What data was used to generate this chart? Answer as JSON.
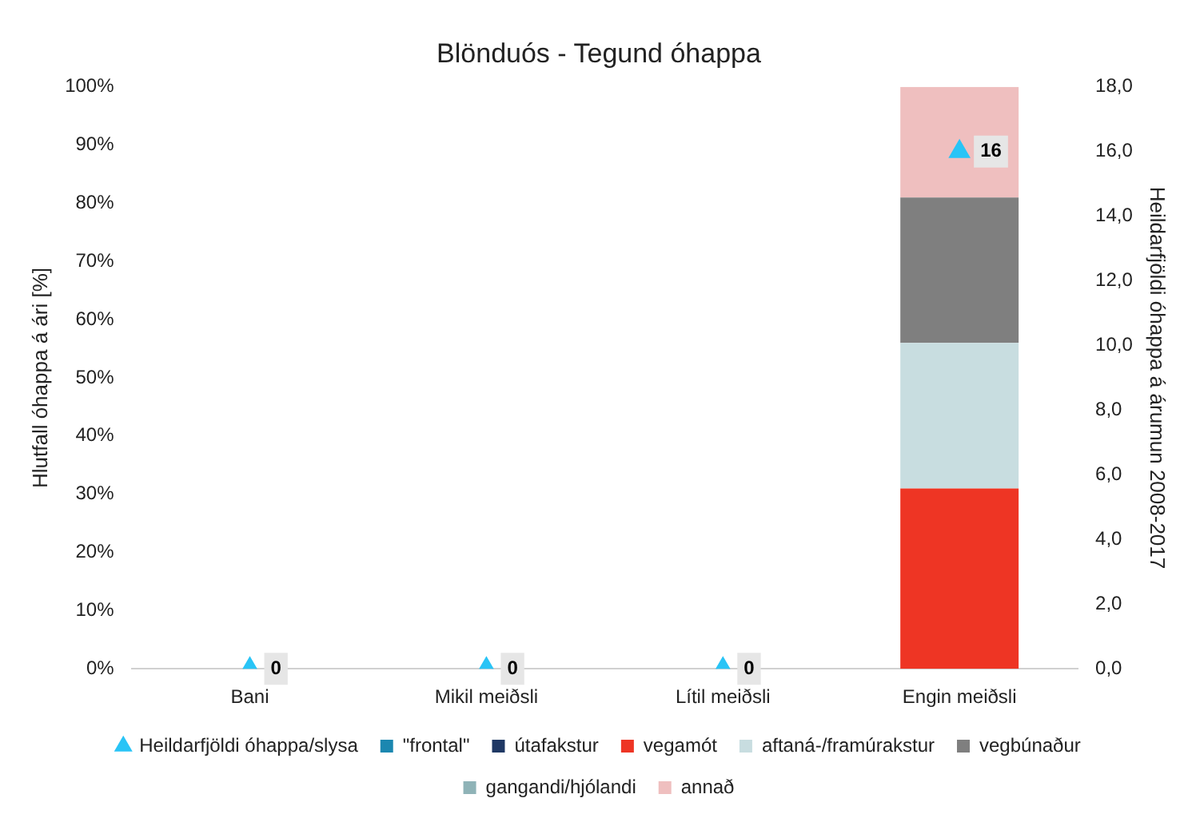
{
  "chart_data": {
    "type": "bar",
    "title": "Blönduós - Tegund óhappa",
    "ylabel": "Hlutfall óhappa á ári [%]",
    "y2label": "Heildarfjöldi óhappa á árumun 2008-2017",
    "categories": [
      "Bani",
      "Mikil meiðsli",
      "Lítil meiðsli",
      "Engin meiðsli"
    ],
    "stacked": true,
    "legend": "bottom",
    "ylim": [
      0,
      100
    ],
    "yticks": [
      {
        "value": 0,
        "label": "0%"
      },
      {
        "value": 10,
        "label": "10%"
      },
      {
        "value": 20,
        "label": "20%"
      },
      {
        "value": 30,
        "label": "30%"
      },
      {
        "value": 40,
        "label": "40%"
      },
      {
        "value": 50,
        "label": "50%"
      },
      {
        "value": 60,
        "label": "60%"
      },
      {
        "value": 70,
        "label": "70%"
      },
      {
        "value": 80,
        "label": "80%"
      },
      {
        "value": 90,
        "label": "90%"
      },
      {
        "value": 100,
        "label": "100%"
      }
    ],
    "y2lim": [
      0,
      18
    ],
    "y2ticks": [
      {
        "value": 0,
        "label": "0,0"
      },
      {
        "value": 2,
        "label": "2,0"
      },
      {
        "value": 4,
        "label": "4,0"
      },
      {
        "value": 6,
        "label": "6,0"
      },
      {
        "value": 8,
        "label": "8,0"
      },
      {
        "value": 10,
        "label": "10,0"
      },
      {
        "value": 12,
        "label": "12,0"
      },
      {
        "value": 14,
        "label": "14,0"
      },
      {
        "value": 16,
        "label": "16,0"
      },
      {
        "value": 18,
        "label": "18,0"
      }
    ],
    "series": [
      {
        "name": "\"frontal\"",
        "color": "#1b87b0",
        "values": [
          0,
          0,
          0,
          0
        ]
      },
      {
        "name": "útafakstur",
        "color": "#1f3864",
        "values": [
          0,
          0,
          0,
          0
        ]
      },
      {
        "name": "vegamót",
        "color": "#ee3524",
        "values": [
          0,
          0,
          0,
          31
        ]
      },
      {
        "name": "aftaná-/framúrakstur",
        "color": "#c8dde0",
        "values": [
          0,
          0,
          0,
          25
        ]
      },
      {
        "name": "vegbúnaður",
        "color": "#7f7f7f",
        "values": [
          0,
          0,
          0,
          25
        ]
      },
      {
        "name": "gangandi/hjólandi",
        "color": "#8fb3b7",
        "values": [
          0,
          0,
          0,
          0
        ]
      },
      {
        "name": "annað",
        "color": "#efbfbf",
        "values": [
          0,
          0,
          0,
          19
        ]
      },
      {
        "name": "Heildarfjöldi óhappa/slysa",
        "type": "scatter",
        "axis": "y2",
        "marker": "triangle",
        "color": "#29c4f6",
        "values": [
          0,
          0,
          0,
          16
        ],
        "value_labels": [
          "0",
          "0",
          "0",
          "16"
        ]
      }
    ]
  }
}
